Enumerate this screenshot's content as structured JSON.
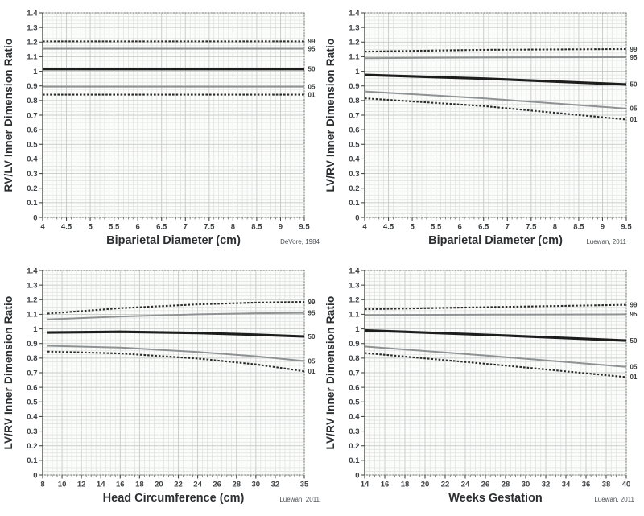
{
  "page": {
    "background": "#ffffff"
  },
  "colors": {
    "plot_bg": "#fcfcfb",
    "grid_minor": "#dde1e0",
    "grid_major": "#c7cccb",
    "frame": "#6f736e",
    "spine": "#4a4d48",
    "tick_text": "#3f4245",
    "title_text": "#2c2f31",
    "attribution_text": "#4a4e50",
    "dotted_line": "#2b2b2b",
    "gray_line": "#8e9292",
    "median_line": "#1d1d1d",
    "percentile_text": "#3a3d3f"
  },
  "chart_data": [
    {
      "id": "rv-lv-vs-biparietal-diameter",
      "type": "line",
      "ylabel": "RV/LV Inner Dimension Ratio",
      "xlabel": "Biparietal Diameter (cm)",
      "attribution": "DeVore, 1984",
      "xlim": [
        4,
        9.5
      ],
      "ylim": [
        0,
        1.4
      ],
      "xticks": [
        4,
        4.5,
        5,
        5.5,
        6,
        6.5,
        7,
        7.5,
        8,
        8.5,
        9,
        9.5
      ],
      "xtick_labels": [
        "4",
        "4.5",
        "5",
        "5.5",
        "6",
        "6.5",
        "7",
        "7.5",
        "8",
        "8.5",
        "9",
        "9.5"
      ],
      "yticks": [
        0,
        0.1,
        0.2,
        0.3,
        0.4,
        0.5,
        0.6,
        0.7,
        0.8,
        0.9,
        1,
        1.1,
        1.2,
        1.3,
        1.4
      ],
      "ytick_labels": [
        "0",
        "0.1",
        "0.2",
        "0.3",
        "0.4",
        "0.5",
        "0.6",
        "0.7",
        "0.8",
        "0.9",
        "1",
        "1.1",
        "1.2",
        "1.3",
        "1.4"
      ],
      "grid": {
        "on": true,
        "x_minor": 0.1,
        "y_minor": 0.025
      },
      "legend_position": "right-of-line-ends",
      "series": [
        {
          "name": "99",
          "style": "dotted",
          "points": [
            [
              4,
              1.205
            ],
            [
              9.5,
              1.205
            ]
          ]
        },
        {
          "name": "95",
          "style": "gray",
          "points": [
            [
              4,
              1.155
            ],
            [
              9.5,
              1.155
            ]
          ]
        },
        {
          "name": "50",
          "style": "median",
          "points": [
            [
              4,
              1.015
            ],
            [
              9.5,
              1.015
            ]
          ]
        },
        {
          "name": "05",
          "style": "gray",
          "points": [
            [
              4,
              0.895
            ],
            [
              9.5,
              0.895
            ]
          ]
        },
        {
          "name": "01",
          "style": "dotted",
          "points": [
            [
              4,
              0.84
            ],
            [
              9.5,
              0.84
            ]
          ]
        }
      ]
    },
    {
      "id": "lv-rv-vs-biparietal-diameter",
      "type": "line",
      "ylabel": "LV/RV Inner Dimension Ratio",
      "xlabel": "Biparietal Diameter (cm)",
      "attribution": "Luewan, 2011",
      "xlim": [
        4,
        9.5
      ],
      "ylim": [
        0,
        1.4
      ],
      "xticks": [
        4,
        4.5,
        5,
        5.5,
        6,
        6.5,
        7,
        7.5,
        8,
        8.5,
        9,
        9.5
      ],
      "xtick_labels": [
        "4",
        "4.5",
        "5",
        "5.5",
        "6",
        "6.5",
        "7",
        "7.5",
        "8",
        "8.5",
        "9",
        "9.5"
      ],
      "yticks": [
        0,
        0.1,
        0.2,
        0.3,
        0.4,
        0.5,
        0.6,
        0.7,
        0.8,
        0.9,
        1,
        1.1,
        1.2,
        1.3,
        1.4
      ],
      "ytick_labels": [
        "0",
        "0.1",
        "0.2",
        "0.3",
        "0.4",
        "0.5",
        "0.6",
        "0.7",
        "0.8",
        "0.9",
        "1",
        "1.1",
        "1.2",
        "1.3",
        "1.4"
      ],
      "grid": {
        "on": true,
        "x_minor": 0.1,
        "y_minor": 0.025
      },
      "legend_position": "right-of-line-ends",
      "series": [
        {
          "name": "99",
          "style": "dotted",
          "points": [
            [
              4,
              1.135
            ],
            [
              6.5,
              1.147
            ],
            [
              9.5,
              1.152
            ]
          ]
        },
        {
          "name": "95",
          "style": "gray",
          "points": [
            [
              4,
              1.09
            ],
            [
              6.5,
              1.095
            ],
            [
              9.5,
              1.097
            ]
          ]
        },
        {
          "name": "50",
          "style": "median",
          "points": [
            [
              4,
              0.975
            ],
            [
              6.5,
              0.95
            ],
            [
              9.5,
              0.91
            ]
          ]
        },
        {
          "name": "05",
          "style": "gray",
          "points": [
            [
              4,
              0.862
            ],
            [
              6.5,
              0.815
            ],
            [
              9.5,
              0.745
            ]
          ]
        },
        {
          "name": "01",
          "style": "dotted",
          "points": [
            [
              4,
              0.815
            ],
            [
              6.5,
              0.762
            ],
            [
              9.5,
              0.67
            ]
          ]
        }
      ]
    },
    {
      "id": "lv-rv-vs-head-circumference",
      "type": "line",
      "ylabel": "LV/RV Inner Dimension Ratio",
      "xlabel": "Head Circumference (cm)",
      "attribution": "Luewan, 2011",
      "xlim": [
        8,
        35
      ],
      "ylim": [
        0,
        1.4
      ],
      "xticks": [
        8,
        10,
        12,
        14,
        16,
        18,
        20,
        22,
        24,
        26,
        28,
        30,
        32,
        35
      ],
      "xtick_labels": [
        "8",
        "10",
        "12",
        "14",
        "16",
        "18",
        "20",
        "22",
        "24",
        "26",
        "28",
        "30",
        "32",
        "35"
      ],
      "yticks": [
        0,
        0.1,
        0.2,
        0.3,
        0.4,
        0.5,
        0.6,
        0.7,
        0.8,
        0.9,
        1,
        1.1,
        1.2,
        1.3,
        1.4
      ],
      "ytick_labels": [
        "0",
        "0.1",
        "0.2",
        "0.3",
        "0.4",
        "0.5",
        "0.6",
        "0.7",
        "0.8",
        "0.9",
        "1",
        "1.1",
        "1.2",
        "1.3",
        "1.4"
      ],
      "grid": {
        "on": true,
        "x_minor": 0.5,
        "y_minor": 0.025
      },
      "legend_position": "right-of-line-ends",
      "series": [
        {
          "name": "99",
          "style": "dotted",
          "points": [
            [
              8.5,
              1.105
            ],
            [
              16,
              1.142
            ],
            [
              24,
              1.168
            ],
            [
              30,
              1.18
            ],
            [
              35,
              1.185
            ]
          ]
        },
        {
          "name": "95",
          "style": "gray",
          "points": [
            [
              8.5,
              1.065
            ],
            [
              16,
              1.085
            ],
            [
              24,
              1.1
            ],
            [
              30,
              1.107
            ],
            [
              35,
              1.11
            ]
          ]
        },
        {
          "name": "50",
          "style": "median",
          "points": [
            [
              8.5,
              0.975
            ],
            [
              16,
              0.98
            ],
            [
              24,
              0.972
            ],
            [
              30,
              0.96
            ],
            [
              35,
              0.948
            ]
          ]
        },
        {
          "name": "05",
          "style": "gray",
          "points": [
            [
              8.5,
              0.885
            ],
            [
              16,
              0.872
            ],
            [
              24,
              0.842
            ],
            [
              30,
              0.812
            ],
            [
              35,
              0.78
            ]
          ]
        },
        {
          "name": "01",
          "style": "dotted",
          "points": [
            [
              8.5,
              0.845
            ],
            [
              16,
              0.832
            ],
            [
              24,
              0.797
            ],
            [
              30,
              0.757
            ],
            [
              35,
              0.71
            ]
          ]
        }
      ]
    },
    {
      "id": "lv-rv-vs-weeks-gestation",
      "type": "line",
      "ylabel": "LV/RV Inner Dimension Ratio",
      "xlabel": "Weeks Gestation",
      "attribution": "Luewan, 2011",
      "xlim": [
        14,
        40
      ],
      "ylim": [
        0,
        1.4
      ],
      "xticks": [
        14,
        16,
        18,
        20,
        22,
        24,
        26,
        28,
        30,
        32,
        34,
        36,
        38,
        40
      ],
      "xtick_labels": [
        "14",
        "16",
        "18",
        "20",
        "22",
        "24",
        "26",
        "28",
        "30",
        "32",
        "34",
        "36",
        "38",
        "40"
      ],
      "yticks": [
        0,
        0.1,
        0.2,
        0.3,
        0.4,
        0.5,
        0.6,
        0.7,
        0.8,
        0.9,
        1,
        1.1,
        1.2,
        1.3,
        1.4
      ],
      "ytick_labels": [
        "0",
        "0.1",
        "0.2",
        "0.3",
        "0.4",
        "0.5",
        "0.6",
        "0.7",
        "0.8",
        "0.9",
        "1",
        "1.1",
        "1.2",
        "1.3",
        "1.4"
      ],
      "grid": {
        "on": true,
        "x_minor": 0.5,
        "y_minor": 0.025
      },
      "legend_position": "right-of-line-ends",
      "series": [
        {
          "name": "99",
          "style": "dotted",
          "points": [
            [
              14,
              1.135
            ],
            [
              27,
              1.15
            ],
            [
              40,
              1.165
            ]
          ]
        },
        {
          "name": "95",
          "style": "gray",
          "points": [
            [
              14,
              1.095
            ],
            [
              27,
              1.098
            ],
            [
              40,
              1.1
            ]
          ]
        },
        {
          "name": "50",
          "style": "median",
          "points": [
            [
              14,
              0.99
            ],
            [
              27,
              0.957
            ],
            [
              40,
              0.92
            ]
          ]
        },
        {
          "name": "05",
          "style": "gray",
          "points": [
            [
              14,
              0.88
            ],
            [
              27,
              0.812
            ],
            [
              40,
              0.74
            ]
          ]
        },
        {
          "name": "01",
          "style": "dotted",
          "points": [
            [
              14,
              0.835
            ],
            [
              27,
              0.755
            ],
            [
              40,
              0.67
            ]
          ]
        }
      ]
    }
  ]
}
